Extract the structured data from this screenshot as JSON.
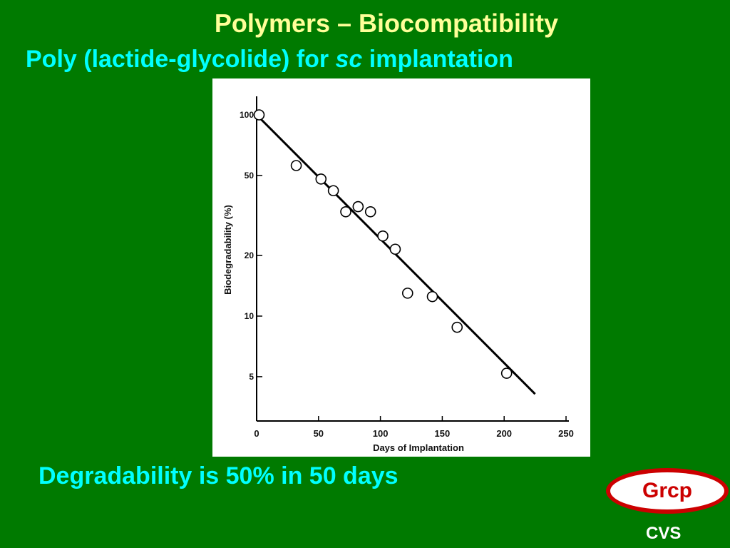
{
  "slide": {
    "title": "Polymers – Biocompatibility",
    "subtitle_pre": "Poly (lactide-glycolide) for ",
    "subtitle_em": "sc",
    "subtitle_post": " implantation",
    "note": "Degradability is 50% in 50 days",
    "logo_text": "Grcp",
    "footer": "CVS"
  },
  "colors": {
    "background": "#007a00",
    "title": "#ffff99",
    "subtitle": "#00ffff",
    "logo": "#cc0000"
  },
  "chart_data": {
    "type": "scatter",
    "title": "",
    "xlabel": "Days of Implantation",
    "ylabel": "Biodegradability (%)",
    "xlim": [
      0,
      250
    ],
    "ylim": [
      3,
      100
    ],
    "yscale": "log",
    "xticks": [
      0,
      50,
      100,
      150,
      200,
      250
    ],
    "yticks": [
      5,
      10,
      20,
      50,
      100
    ],
    "grid": false,
    "points": [
      {
        "x": 2,
        "y": 100
      },
      {
        "x": 32,
        "y": 56
      },
      {
        "x": 52,
        "y": 48
      },
      {
        "x": 62,
        "y": 42
      },
      {
        "x": 72,
        "y": 33
      },
      {
        "x": 82,
        "y": 35
      },
      {
        "x": 92,
        "y": 33
      },
      {
        "x": 102,
        "y": 25
      },
      {
        "x": 112,
        "y": 21.5
      },
      {
        "x": 122,
        "y": 13
      },
      {
        "x": 142,
        "y": 12.5
      },
      {
        "x": 162,
        "y": 8.8
      },
      {
        "x": 202,
        "y": 5.2
      }
    ],
    "fit_line": {
      "x": [
        0,
        225
      ],
      "y": [
        100,
        4.1
      ]
    }
  }
}
